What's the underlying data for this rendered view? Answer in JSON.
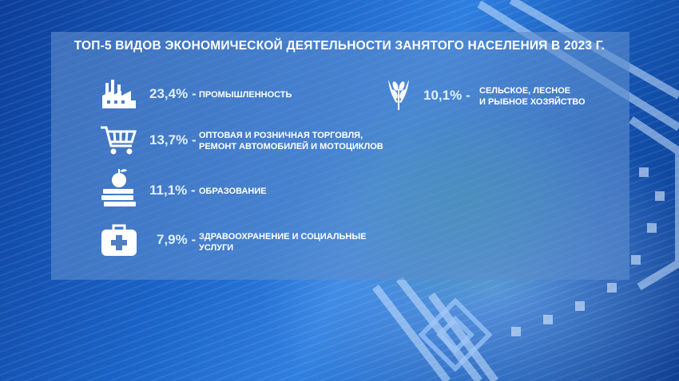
{
  "title": "ТОП-5 ВИДОВ ЭКОНОМИЧЕСКОЙ ДЕЯТЕЛЬНОСТИ ЗАНЯТОГО НАСЕЛЕНИЯ В 2023 Г.",
  "chart_data": {
    "type": "table",
    "title": "ТОП-5 ВИДОВ ЭКОНОМИЧЕСКОЙ ДЕЯТЕЛЬНОСТИ ЗАНЯТОГО НАСЕЛЕНИЯ В 2023 Г.",
    "unit": "%",
    "rows": [
      {
        "value_label": "23,4%",
        "value": 23.4,
        "category": "ПРОМЫШЛЕННОСТЬ",
        "icon": "factory-icon"
      },
      {
        "value_label": "13,7%",
        "value": 13.7,
        "category": "ОПТОВАЯ И РОЗНИЧНАЯ ТОРГОВЛЯ,\nРЕМОНТ АВТОМОБИЛЕЙ И МОТОЦИКЛОВ",
        "icon": "shopping-cart-icon"
      },
      {
        "value_label": "11,1%",
        "value": 11.1,
        "category": "ОБРАЗОВАНИЕ",
        "icon": "books-apple-icon"
      },
      {
        "value_label": "7,9%",
        "value": 7.9,
        "category": "ЗДРАВООХРАНЕНИЕ И СОЦИАЛЬНЫЕ\nУСЛУГИ",
        "icon": "medical-kit-icon"
      },
      {
        "value_label": "10,1%",
        "value": 10.1,
        "category": "СЕЛЬСКОЕ, ЛЕСНОЕ\nИ РЫБНОЕ ХОЗЯЙСТВО",
        "icon": "wheat-icon"
      }
    ]
  },
  "colors": {
    "panel": "#5c8ccd",
    "text": "#ffffff",
    "value": "#dff0ff",
    "background": "#1b64c8"
  }
}
